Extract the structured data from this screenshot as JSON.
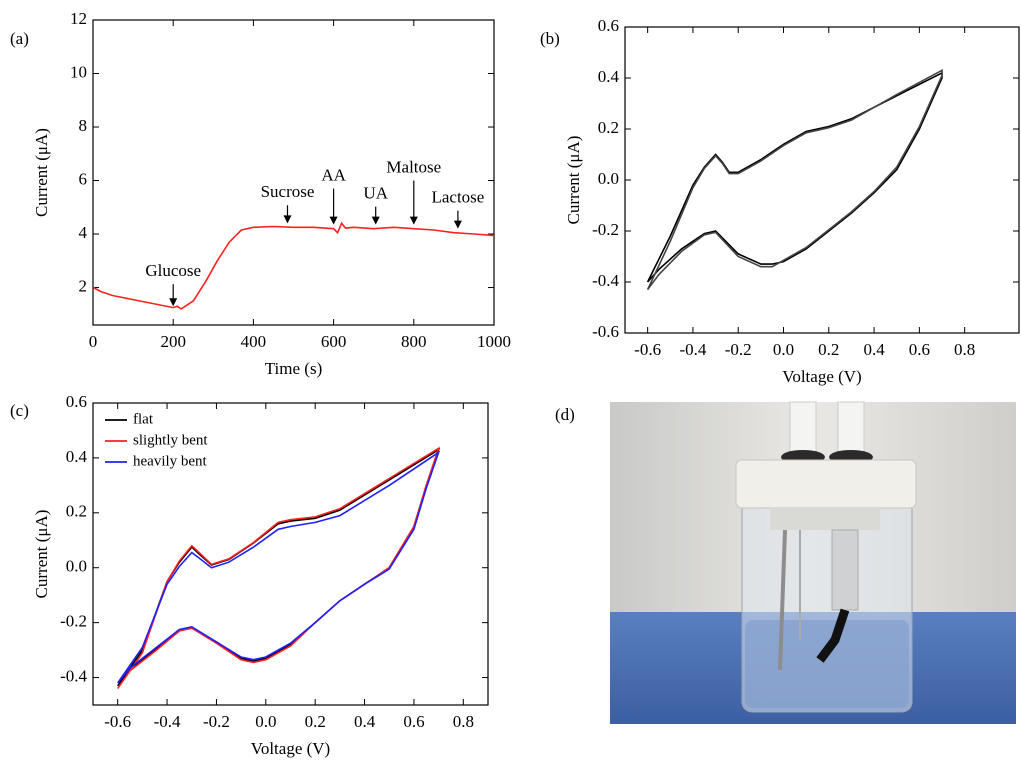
{
  "chart_data": [
    {
      "type": "line",
      "label": "(a)",
      "xlabel": "Time (s)",
      "ylabel": "Current (μA)",
      "xlim": [
        0,
        1000
      ],
      "xticks": [
        0,
        200,
        400,
        600,
        800,
        1000
      ],
      "ylim": [
        0.6,
        12
      ],
      "yticks": [
        2,
        4,
        6,
        8,
        10,
        12
      ],
      "x": [
        0,
        20,
        50,
        100,
        150,
        200,
        210,
        220,
        250,
        280,
        310,
        340,
        370,
        400,
        450,
        500,
        550,
        600,
        610,
        620,
        630,
        650,
        700,
        750,
        800,
        850,
        900,
        950,
        1000
      ],
      "series": [
        {
          "color": "#ff2020",
          "values": [
            2.0,
            1.85,
            1.7,
            1.55,
            1.4,
            1.25,
            1.3,
            1.2,
            1.5,
            2.2,
            3.0,
            3.7,
            4.15,
            4.25,
            4.28,
            4.25,
            4.25,
            4.2,
            4.05,
            4.4,
            4.22,
            4.25,
            4.2,
            4.25,
            4.2,
            4.15,
            4.05,
            4.0,
            3.95
          ]
        }
      ],
      "annotations": [
        {
          "text": "Glucose",
          "x": 200,
          "y": 1.3
        },
        {
          "text": "Sucrose",
          "x": 485,
          "y": 4.4
        },
        {
          "text": "AA",
          "x": 600,
          "y": 4.35
        },
        {
          "text": "UA",
          "x": 705,
          "y": 4.35
        },
        {
          "text": "Maltose",
          "x": 800,
          "y": 4.35
        },
        {
          "text": "Lactose",
          "x": 910,
          "y": 4.2
        }
      ]
    },
    {
      "type": "line",
      "label": "(b)",
      "xlabel": "Voltage (V)",
      "ylabel": "Current (μA)",
      "xlim": [
        -0.7,
        1.04
      ],
      "xticks": [
        -0.6,
        -0.4,
        -0.2,
        {
          "value": 0,
          "label": "0.0"
        },
        0.2,
        0.4,
        0.6,
        0.8
      ],
      "ylim": [
        -0.6,
        0.6
      ],
      "yticks": [
        -0.6,
        -0.4,
        -0.2,
        {
          "value": 0,
          "label": "0.0"
        },
        0.2,
        0.4,
        0.6
      ],
      "x": [
        -0.6,
        -0.5,
        -0.4,
        -0.35,
        -0.3,
        -0.27,
        -0.24,
        -0.2,
        -0.1,
        0.0,
        0.1,
        0.2,
        0.3,
        0.5,
        0.7,
        0.7,
        0.6,
        0.5,
        0.4,
        0.3,
        0.2,
        0.1,
        0.0,
        -0.05,
        -0.1,
        -0.2,
        -0.3,
        -0.35,
        -0.45,
        -0.55,
        -0.6
      ],
      "series": [
        {
          "color": "#000000",
          "values": [
            -0.4,
            -0.22,
            -0.02,
            0.05,
            0.1,
            0.07,
            0.03,
            0.03,
            0.08,
            0.14,
            0.19,
            0.21,
            0.24,
            0.33,
            0.42,
            0.4,
            0.2,
            0.04,
            -0.05,
            -0.13,
            -0.2,
            -0.27,
            -0.32,
            -0.33,
            -0.33,
            -0.29,
            -0.2,
            -0.21,
            -0.27,
            -0.35,
            -0.4
          ]
        },
        {
          "color": "#444444",
          "values": [
            -0.43,
            -0.24,
            -0.03,
            0.045,
            0.095,
            0.065,
            0.025,
            0.025,
            0.075,
            0.135,
            0.185,
            0.205,
            0.235,
            0.335,
            0.43,
            0.41,
            0.21,
            0.05,
            -0.045,
            -0.125,
            -0.195,
            -0.265,
            -0.315,
            -0.34,
            -0.34,
            -0.3,
            -0.205,
            -0.215,
            -0.28,
            -0.37,
            -0.43
          ]
        }
      ]
    },
    {
      "type": "line",
      "label": "(c)",
      "xlabel": "Voltage (V)",
      "ylabel": "Current (μA)",
      "xlim": [
        -0.7,
        0.9
      ],
      "xticks": [
        -0.6,
        -0.4,
        -0.2,
        {
          "value": 0,
          "label": "0.0"
        },
        0.2,
        0.4,
        0.6,
        0.8
      ],
      "ylim": [
        -0.5,
        0.6
      ],
      "yticks": [
        -0.4,
        -0.2,
        {
          "value": 0,
          "label": "0.0"
        },
        0.2,
        0.4,
        0.6
      ],
      "legend": "upper left",
      "x": [
        -0.6,
        -0.5,
        -0.4,
        -0.35,
        -0.3,
        -0.27,
        -0.22,
        -0.15,
        -0.05,
        0.05,
        0.1,
        0.2,
        0.3,
        0.5,
        0.7,
        0.65,
        0.6,
        0.5,
        0.4,
        0.3,
        0.2,
        0.1,
        0.0,
        -0.05,
        -0.1,
        -0.2,
        -0.3,
        -0.35,
        -0.45,
        -0.55,
        -0.6
      ],
      "series": [
        {
          "name": "flat",
          "color": "#000000",
          "values": [
            -0.43,
            -0.3,
            -0.05,
            0.02,
            0.075,
            0.05,
            0.01,
            0.03,
            0.09,
            0.16,
            0.17,
            0.18,
            0.21,
            0.32,
            0.43,
            0.3,
            0.15,
            0.0,
            -0.06,
            -0.12,
            -0.2,
            -0.28,
            -0.33,
            -0.34,
            -0.33,
            -0.27,
            -0.22,
            -0.23,
            -0.3,
            -0.37,
            -0.43
          ]
        },
        {
          "name": "slightly bent",
          "color": "#ff2020",
          "values": [
            -0.44,
            -0.31,
            -0.05,
            0.025,
            0.08,
            0.055,
            0.012,
            0.032,
            0.092,
            0.165,
            0.175,
            0.185,
            0.215,
            0.325,
            0.435,
            0.3,
            0.15,
            0.0,
            -0.06,
            -0.12,
            -0.2,
            -0.285,
            -0.335,
            -0.345,
            -0.335,
            -0.275,
            -0.22,
            -0.23,
            -0.305,
            -0.375,
            -0.44
          ]
        },
        {
          "name": "heavily bent",
          "color": "#2020ff",
          "values": [
            -0.42,
            -0.29,
            -0.06,
            0.005,
            0.055,
            0.035,
            0.0,
            0.02,
            0.075,
            0.14,
            0.15,
            0.165,
            0.19,
            0.3,
            0.42,
            0.29,
            0.14,
            -0.005,
            -0.06,
            -0.12,
            -0.2,
            -0.275,
            -0.325,
            -0.335,
            -0.325,
            -0.27,
            -0.215,
            -0.225,
            -0.295,
            -0.365,
            -0.42
          ]
        }
      ]
    }
  ],
  "photo": {
    "label": "(d)"
  }
}
